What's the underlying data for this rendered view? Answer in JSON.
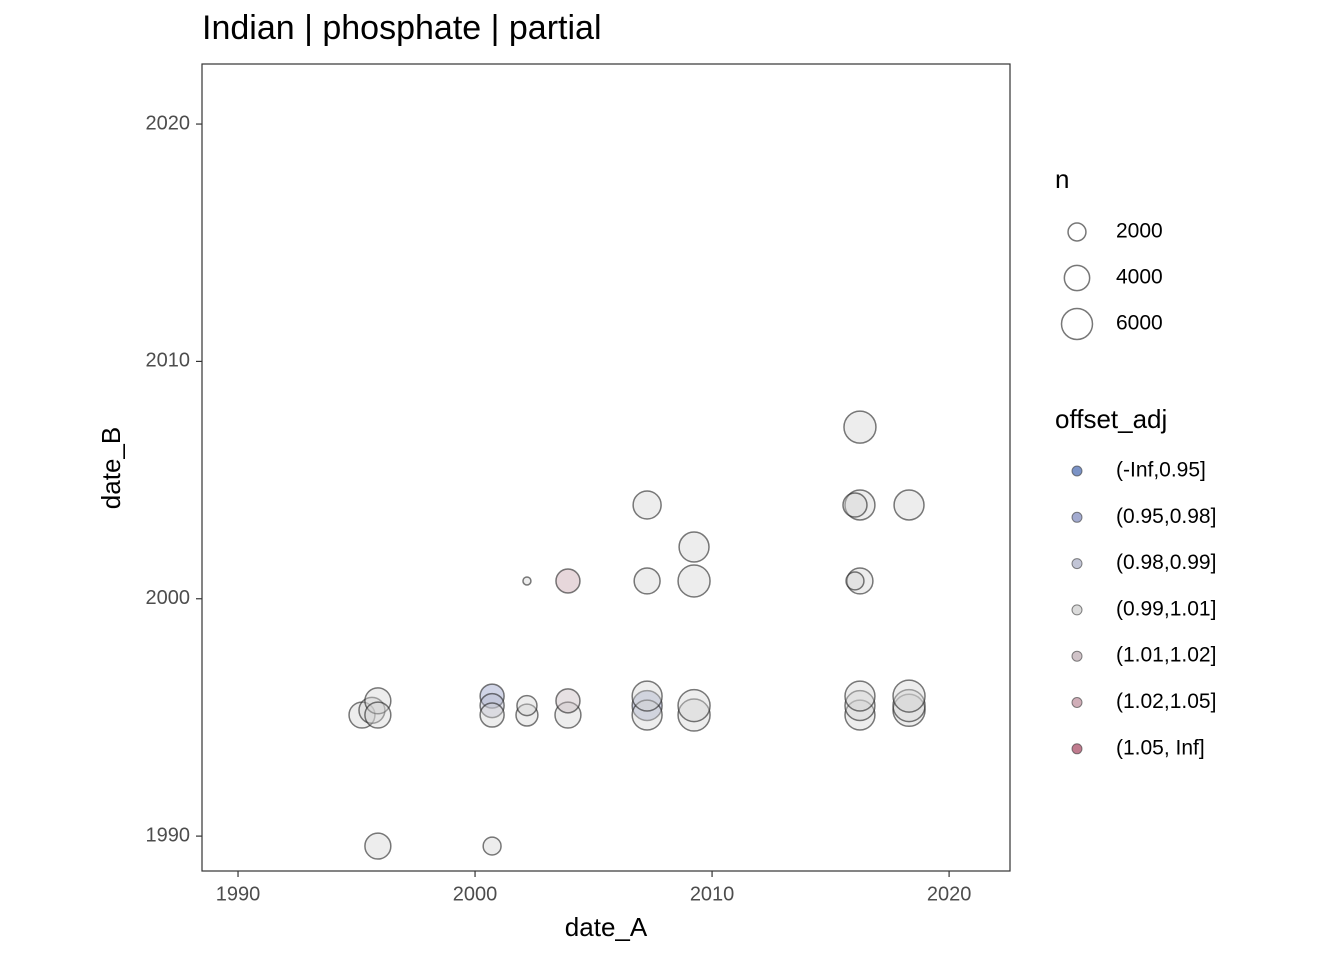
{
  "chart_data": {
    "type": "scatter",
    "title": "Indian | phosphate | partial",
    "x_label": "date_A",
    "y_label": "date_B",
    "xlim": [
      1988.48,
      2022.57
    ],
    "ylim": [
      1988.53,
      2022.53
    ],
    "xticks": [
      1990,
      2000,
      2010,
      2020
    ],
    "yticks": [
      1990,
      2000,
      2010,
      2020
    ],
    "grid": false,
    "size_legend": {
      "title": "n",
      "breaks": [
        2000,
        4000,
        6000
      ]
    },
    "color_legend_title": "offset_adj",
    "series": [
      {
        "name": "(-Inf,0.95]",
        "color": "#5a78b8",
        "x": [],
        "y": [],
        "sizes": []
      },
      {
        "name": "(0.95,0.98]",
        "color": "#8c96c4",
        "x": [
          2000.72,
          2007.26
        ],
        "y": [
          1995.9,
          1995.5
        ],
        "sizes": [
          3600,
          5600
        ]
      },
      {
        "name": "(0.98,0.99]",
        "color": "#b3b7cc",
        "x": [
          2000.72
        ],
        "y": [
          1995.5
        ],
        "sizes": [
          3600
        ]
      },
      {
        "name": "(0.99,1.01]",
        "color": "#d2d2d2",
        "x": [
          1995.23,
          1995.65,
          1995.9,
          1995.9,
          1995.9,
          2000.72,
          2000.72,
          2002.19,
          2002.19,
          2002.19,
          2003.92,
          2007.26,
          2007.26,
          2007.26,
          2007.26,
          2009.24,
          2009.24,
          2009.24,
          2009.24,
          2016.24,
          2016.24,
          2016.03,
          2016.24,
          2016.03,
          2016.24,
          2016.24,
          2016.24,
          2018.31,
          2018.31,
          2018.31,
          2018.31
        ],
        "y": [
          1995.1,
          1995.3,
          1995.7,
          1995.1,
          1989.58,
          1989.58,
          1995.1,
          2000.75,
          1995.1,
          1995.5,
          1995.1,
          2003.95,
          2000.75,
          1995.1,
          1995.9,
          2002.18,
          2000.75,
          1995.1,
          1995.5,
          2007.23,
          2003.95,
          2003.95,
          2000.75,
          2000.75,
          1995.1,
          1995.5,
          1995.9,
          2003.95,
          1995.3,
          1995.5,
          1995.9
        ],
        "sizes": [
          4200,
          4200,
          4200,
          4200,
          4200,
          2000,
          3600,
          400,
          3000,
          2500,
          4200,
          4900,
          4200,
          5600,
          5600,
          5600,
          6400,
          6400,
          6400,
          6400,
          5600,
          3600,
          4200,
          2000,
          5600,
          5600,
          5600,
          5600,
          6400,
          6400,
          6400
        ]
      },
      {
        "name": "(1.01,1.02]",
        "color": "#c4b4ba",
        "x": [
          2003.92
        ],
        "y": [
          1995.7
        ],
        "sizes": [
          3600
        ]
      },
      {
        "name": "(1.02,1.05]",
        "color": "#c49aa6",
        "x": [
          2003.92
        ],
        "y": [
          2000.75
        ],
        "sizes": [
          3600
        ]
      },
      {
        "name": "(1.05, Inf]",
        "color": "#b05a72",
        "x": [],
        "y": [],
        "sizes": []
      }
    ]
  }
}
